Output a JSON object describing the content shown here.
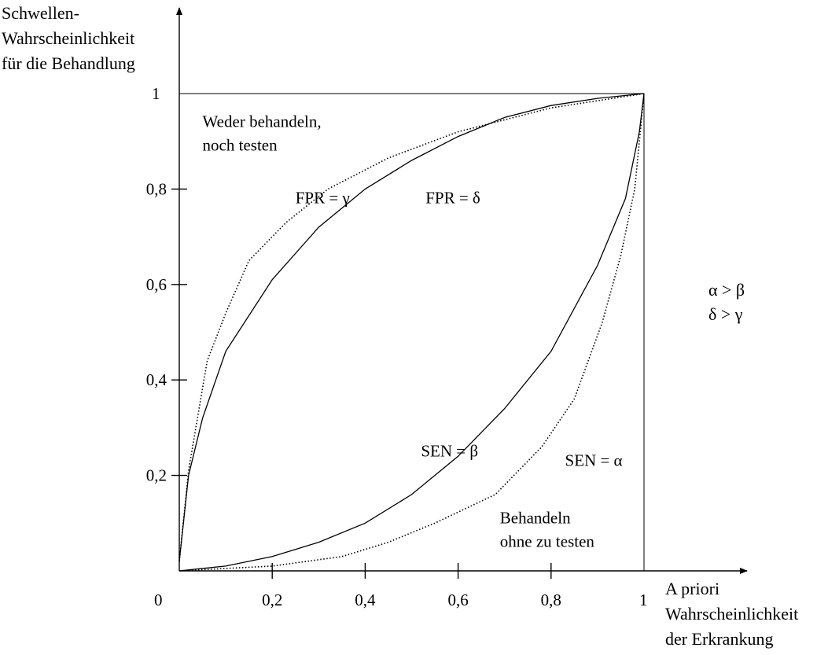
{
  "chart_data": {
    "type": "line",
    "xlabel": [
      "A priori",
      "Wahrscheinlichkeit",
      "der Erkrankung"
    ],
    "ylabel": [
      "Schwellen-",
      "Wahrscheinlichkeit",
      "für die Behandlung"
    ],
    "xlim": [
      0,
      1
    ],
    "ylim": [
      0,
      1
    ],
    "x_ticks": [
      {
        "value": 0.2,
        "label": "0,2"
      },
      {
        "value": 0.4,
        "label": "0,4"
      },
      {
        "value": 0.6,
        "label": "0,6"
      },
      {
        "value": 0.8,
        "label": "0,8"
      }
    ],
    "y_ticks": [
      {
        "value": 0.2,
        "label": "0,2"
      },
      {
        "value": 0.4,
        "label": "0,4"
      },
      {
        "value": 0.6,
        "label": "0,6"
      },
      {
        "value": 0.8,
        "label": "0,8"
      }
    ],
    "origin_label": "0",
    "x_end_label": "1",
    "y_end_label": "1",
    "series": [
      {
        "name": "FPR = γ",
        "style": "dotted",
        "label_at": [
          0.25,
          0.77
        ],
        "points": [
          [
            0,
            0.02
          ],
          [
            0.02,
            0.21
          ],
          [
            0.06,
            0.44
          ],
          [
            0.1,
            0.54
          ],
          [
            0.15,
            0.65
          ],
          [
            0.23,
            0.73
          ],
          [
            0.32,
            0.8
          ],
          [
            0.45,
            0.865
          ],
          [
            0.6,
            0.92
          ],
          [
            0.8,
            0.97
          ],
          [
            1,
            1
          ]
        ]
      },
      {
        "name": "FPR = δ",
        "style": "solid",
        "label_at": [
          0.53,
          0.77
        ],
        "points": [
          [
            0,
            0.02
          ],
          [
            0.02,
            0.2
          ],
          [
            0.05,
            0.32
          ],
          [
            0.1,
            0.46
          ],
          [
            0.2,
            0.61
          ],
          [
            0.3,
            0.72
          ],
          [
            0.4,
            0.8
          ],
          [
            0.5,
            0.86
          ],
          [
            0.6,
            0.91
          ],
          [
            0.7,
            0.95
          ],
          [
            0.8,
            0.975
          ],
          [
            0.9,
            0.99
          ],
          [
            1,
            1
          ]
        ]
      },
      {
        "name": "SEN = β",
        "style": "solid",
        "label_at": [
          0.52,
          0.24
        ],
        "points": [
          [
            0,
            0
          ],
          [
            0.1,
            0.01
          ],
          [
            0.2,
            0.03
          ],
          [
            0.3,
            0.06
          ],
          [
            0.4,
            0.1
          ],
          [
            0.5,
            0.16
          ],
          [
            0.6,
            0.24
          ],
          [
            0.7,
            0.34
          ],
          [
            0.8,
            0.46
          ],
          [
            0.9,
            0.64
          ],
          [
            0.96,
            0.78
          ],
          [
            0.99,
            0.92
          ],
          [
            1,
            1
          ]
        ]
      },
      {
        "name": "SEN = α",
        "style": "dotted",
        "label_at": [
          0.83,
          0.22
        ],
        "points": [
          [
            0,
            0
          ],
          [
            0.2,
            0.01
          ],
          [
            0.35,
            0.03
          ],
          [
            0.45,
            0.06
          ],
          [
            0.55,
            0.1
          ],
          [
            0.68,
            0.16
          ],
          [
            0.78,
            0.26
          ],
          [
            0.85,
            0.36
          ],
          [
            0.91,
            0.52
          ],
          [
            0.95,
            0.66
          ],
          [
            0.98,
            0.8
          ],
          [
            1,
            1
          ]
        ]
      }
    ],
    "annotations": [
      {
        "text": [
          "Weder behandeln,",
          "noch testen"
        ],
        "at": [
          0.05,
          0.93
        ]
      },
      {
        "text": [
          "Behandeln",
          "ohne zu testen"
        ],
        "at": [
          0.69,
          0.1
        ]
      }
    ],
    "side_note": [
      "α > β",
      "δ > γ"
    ]
  }
}
